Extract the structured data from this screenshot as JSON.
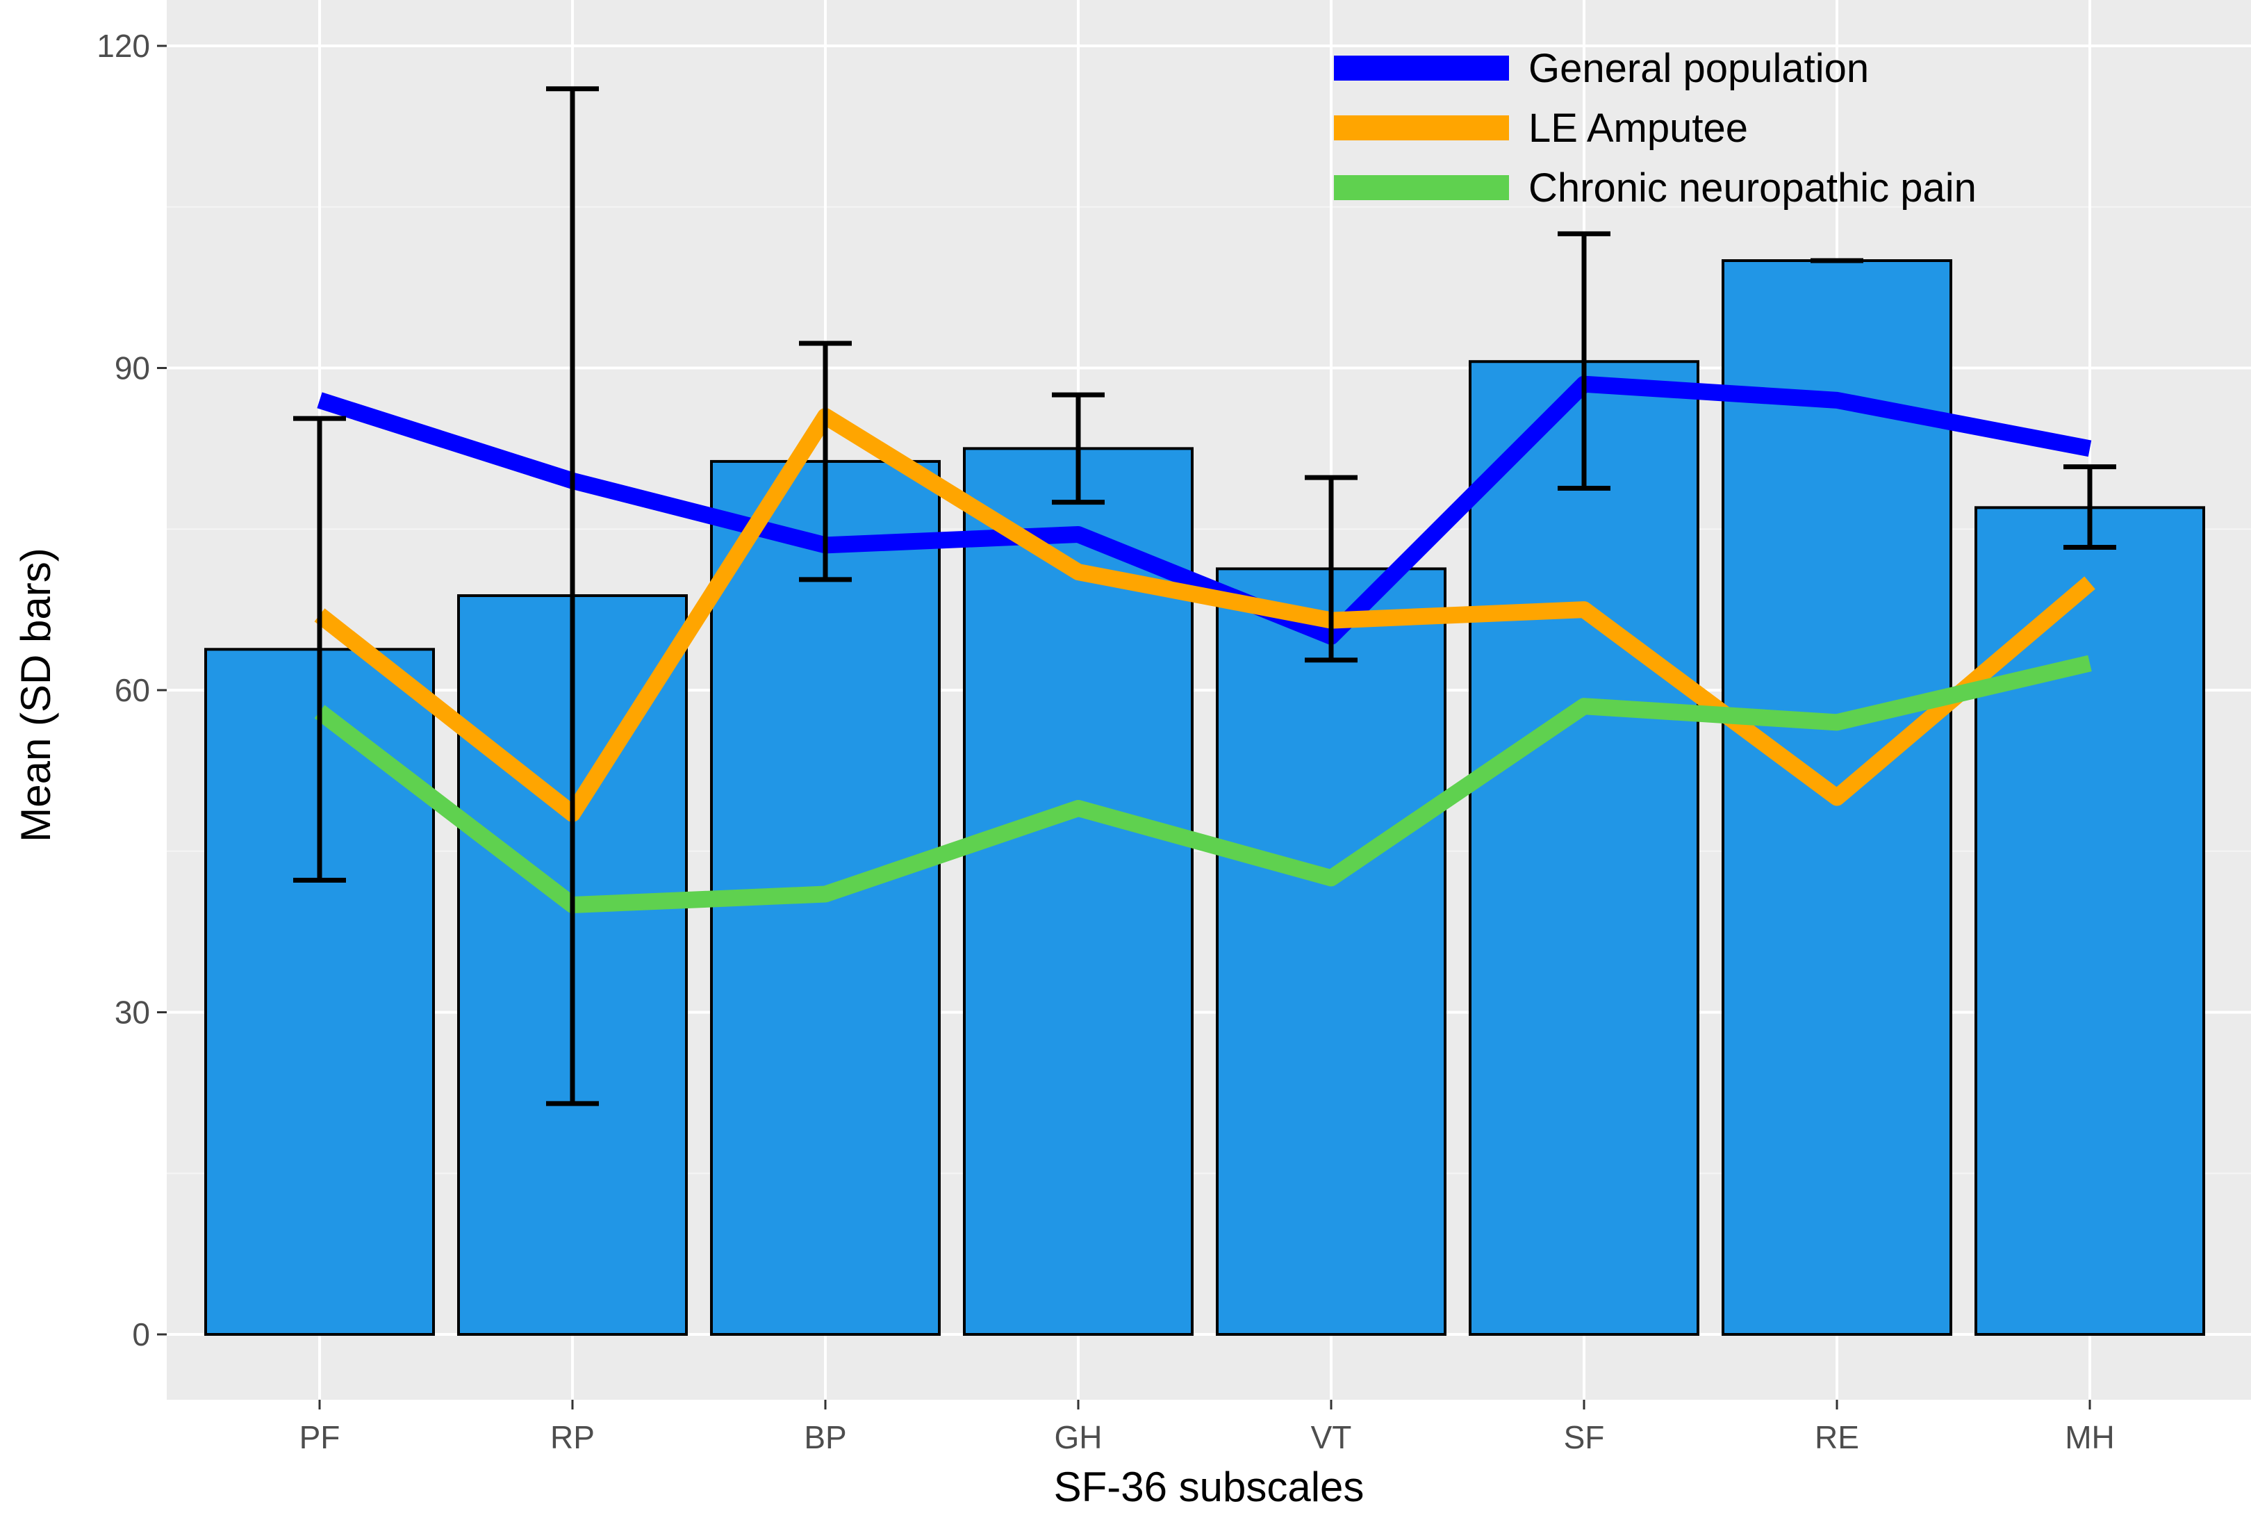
{
  "chart_data": {
    "type": "bar",
    "title": "",
    "xlabel": "SF-36 subscales",
    "ylabel": "Mean (SD bars)",
    "categories": [
      "PF",
      "RP",
      "BP",
      "GH",
      "VT",
      "SF",
      "RE",
      "MH"
    ],
    "ylim": [
      -6,
      120
    ],
    "yticks": [
      0,
      30,
      60,
      90,
      120
    ],
    "ytick_labels": [
      "0",
      "30",
      "60",
      "90",
      "120"
    ],
    "grid": true,
    "bar_color": "#2196e6",
    "bar_values": [
      63.8,
      68.8,
      81.3,
      82.5,
      71.3,
      90.6,
      100,
      77.0
    ],
    "sd_low": [
      42.3,
      21.5,
      70.3,
      77.5,
      62.8,
      78.8,
      100,
      73.3
    ],
    "sd_high": [
      85.3,
      116.0,
      92.3,
      87.5,
      79.8,
      102.5,
      100,
      80.8
    ],
    "series": [
      {
        "name": "General population",
        "color": "#0000ff",
        "values": [
          87.0,
          79.5,
          73.5,
          74.5,
          65.0,
          88.5,
          87.0,
          82.5
        ]
      },
      {
        "name": "LE Amputee",
        "color": "#ffa500",
        "values": [
          67.0,
          48.5,
          85.5,
          71.0,
          66.5,
          67.5,
          50.0,
          70.0
        ]
      },
      {
        "name": "Chronic neuropathic pain",
        "color": "#5fd14f",
        "values": [
          58.0,
          40.0,
          41.0,
          49.0,
          42.5,
          58.5,
          57.0,
          62.5
        ]
      }
    ],
    "legend_position": "top-right"
  }
}
